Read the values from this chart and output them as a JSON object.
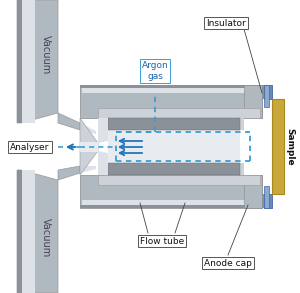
{
  "bg_color": "#ffffff",
  "gray_dark": "#8a9198",
  "gray_mid": "#b0b8c0",
  "gray_light": "#ccd2d8",
  "gray_lighter": "#dde2e8",
  "gray_inner": "#e8ecf0",
  "blue_dash": "#3a9fd5",
  "blue_arrow": "#2277bb",
  "insulator_gold": "#c8a83a",
  "insulator_blue": "#6688bb",
  "white": "#ffffff",
  "text_dark": "#111111",
  "text_blue": "#1a66aa",
  "text_gray": "#555566",
  "label_edge": "#555555",
  "argon_text": "Argon\ngas",
  "insulator_text": "Insulator",
  "analyser_text": "Analyser",
  "flowtube_text": "Flow tube",
  "anodecap_text": "Anode cap",
  "sample_text": "Sample",
  "vacuum_text": "Vacuum"
}
